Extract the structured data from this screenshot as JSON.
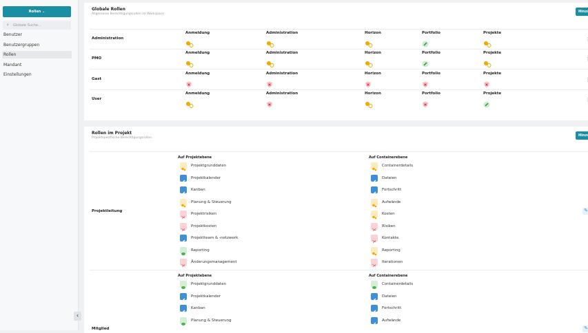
{
  "sidebar": {
    "button": "Rollen",
    "search": "Globale Suche...",
    "nav": [
      "Benutzer",
      "Benutzergruppen",
      "Rollen",
      "Mandant",
      "Einstellungen"
    ]
  },
  "global_roles": {
    "title": "Globale Rollen",
    "subtitle": "Allgemeine Berechtigungsrollen im Workspace",
    "add": "Hinzufügen",
    "columns": [
      "Anmeldung",
      "Administration",
      "Horizon",
      "Portfolio",
      "Projekte"
    ],
    "rows": [
      "Administration",
      "PMO",
      "Gast",
      "User"
    ]
  },
  "project_roles": {
    "title": "Rollen im Projekt",
    "subtitle": "Projektspezifische Berechtigungsrollen",
    "add": "Hinzufügen",
    "left_title": "Auf Projektebene",
    "right_title": "Auf Containerebene",
    "sections": [
      {
        "name": "Projektleitung",
        "left": [
          "Projektgrunddaten",
          "Projektkalender",
          "Kanban",
          "Planung & Steuerung",
          "Projektrisiken",
          "Projektkosten",
          "Projektteam & -netzwerk",
          "Reporting",
          "Änderungsmanagement"
        ],
        "right": [
          "Containerdetails",
          "Dateien",
          "Fortschritt",
          "Aufwände",
          "Kosten",
          "Risiken",
          "Kontakte",
          "Reporting",
          "Iterationen"
        ]
      },
      {
        "name": "Mitglied",
        "left": [
          "Projektgrunddaten",
          "Projektkalender",
          "Kanban",
          "Planung & Steuerung"
        ],
        "right": [
          "Containerdetails",
          "Dateien",
          "Fortschritt",
          "Aufwände"
        ]
      }
    ]
  }
}
